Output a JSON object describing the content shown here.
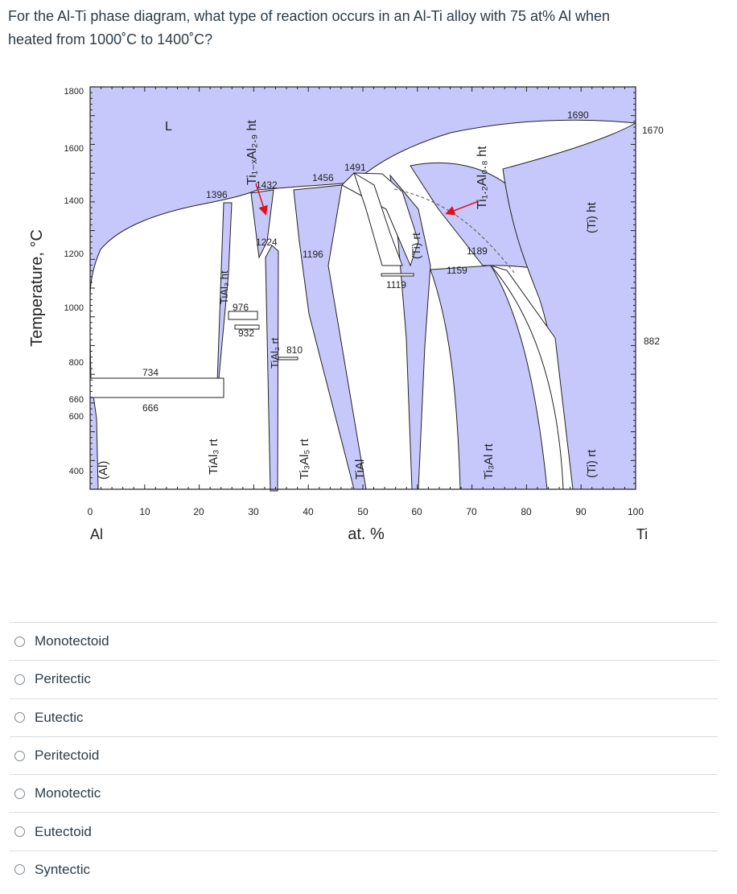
{
  "question": {
    "line1": "For the Al-Ti phase diagram, what type of reaction occurs in an Al-Ti alloy with 75 at% Al when",
    "line2": "heated from 1000˚C to 1400˚C?"
  },
  "diagram": {
    "y_axis_label": "Temperature, °C",
    "x_axis_label": "at. %",
    "left_element": "Al",
    "right_element": "Ti",
    "y_ticks": [
      "1800",
      "1600",
      "1400",
      "1200",
      "1000",
      "800",
      "660",
      "600",
      "400"
    ],
    "x_ticks": [
      "0",
      "10",
      "20",
      "30",
      "40",
      "50",
      "60",
      "70",
      "80",
      "90",
      "100"
    ],
    "temperatures": {
      "t1690": "1690",
      "t1670": "1670",
      "t1491": "1491",
      "t1456": "1456",
      "t1432": "1432",
      "t1396": "1396",
      "t1224": "1224",
      "t1196": "1196",
      "t1189": "1189",
      "t1159": "1159",
      "t1119": "1119",
      "t976": "976",
      "t932": "932",
      "t882": "882",
      "t810": "810",
      "t734": "734",
      "t666": "666"
    },
    "phases": {
      "liquid": "L",
      "al": "(Al)",
      "tial3_ht": "TiAl₃ ht",
      "tial3_rt": "TiAl₃ rt",
      "ti1al29_ht": "Ti₁₋ₓAl₂.₉ ht",
      "tial2_rt": "TiAl₂ rt",
      "ti3al5_rt": "Ti₃Al₅ rt",
      "tial": "TiAl",
      "ti_rt_left": "(Ti) rt",
      "ti12al08_ht": "Ti₁.₂Al₀.₈ ht",
      "ti3al_rt": "Ti₃Al rt",
      "ti_ht": "(Ti) ht",
      "ti_rt_right": "(Ti) rt"
    },
    "colors": {
      "phase_fill": "#c6c8fb",
      "marker": "#e0101a"
    }
  },
  "choices": [
    "Monotectoid",
    "Peritectic",
    "Eutectic",
    "Peritectoid",
    "Monotectic",
    "Eutectoid",
    "Syntectic"
  ]
}
